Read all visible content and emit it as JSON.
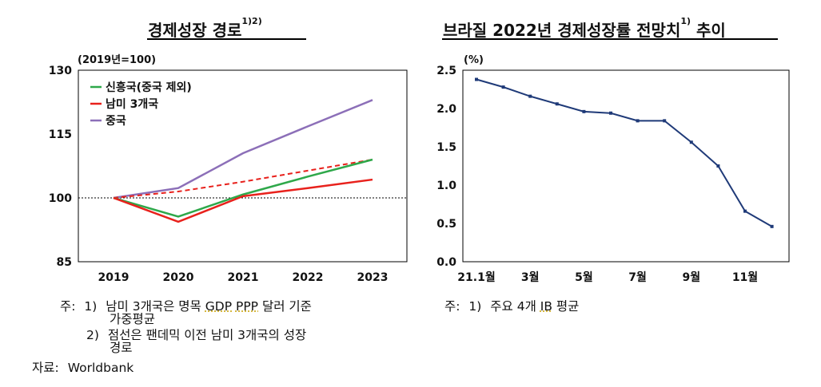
{
  "left": {
    "title": "경제성장 경로",
    "title_sup": "1)2)",
    "notes": {
      "prefix": "주:",
      "n1_num": "1)",
      "n1_a": "남미 3개국은 명목 ",
      "n1_gdp": "GDP",
      "n1_sp": " ",
      "n1_ppp": "PPP",
      "n1_b": " 달러 기준",
      "n1_line2": "가중평균",
      "n2_num": "2)",
      "n2_a": "점선은 팬데믹 이전 남미 3개국의 성장",
      "n2_line2": "경로"
    },
    "source_label": "자료:",
    "source_value": "Worldbank"
  },
  "right": {
    "title": "브라질 2022년 경제성장률 전망치",
    "title_sup": "1)",
    "title_tail": " 추이",
    "notes": {
      "prefix": "주:",
      "n1_num": "1)",
      "n1_a": "주요 4개 ",
      "n1_ib": "IB",
      "n1_b": " 평균"
    }
  },
  "colors": {
    "emerging": "#2ea84a",
    "latam": "#e8211c",
    "china": "#8c6fb8",
    "brazil": "#1f3a78",
    "baseline": "#000000"
  },
  "chart_data": [
    {
      "type": "line",
      "unit_label": "(2019년=100)",
      "x": [
        "2019",
        "2020",
        "2021",
        "2022",
        "2023"
      ],
      "ylim": [
        85,
        130
      ],
      "yticks": [
        85,
        100,
        115,
        130
      ],
      "series": [
        {
          "name": "신흥국(중국 제외)",
          "style": "solid",
          "color": "#2ea84a",
          "values": [
            100,
            95.6,
            100.8,
            105.0,
            109.0
          ]
        },
        {
          "name": "남미 3개국",
          "style": "solid",
          "color": "#e8211c",
          "values": [
            100,
            94.4,
            100.4,
            102.3,
            104.3
          ]
        },
        {
          "name": "중국",
          "style": "solid",
          "color": "#8c6fb8",
          "values": [
            100,
            102.3,
            110.5,
            116.8,
            123.0
          ]
        },
        {
          "name": "",
          "style": "dashed",
          "color": "#e8211c",
          "values": [
            100,
            101.5,
            103.8,
            106.4,
            109.0
          ]
        }
      ],
      "baseline": 100,
      "legend_position": "top-left"
    },
    {
      "type": "line",
      "unit_label": "(%)",
      "ylim": [
        0.0,
        2.5
      ],
      "yticks": [
        "0.0",
        "0.5",
        "1.0",
        "1.5",
        "2.0",
        "2.5"
      ],
      "xtick_labels": [
        "21.1월",
        "3월",
        "5월",
        "7월",
        "9월",
        "11월"
      ],
      "xtick_index": [
        0,
        2,
        4,
        6,
        8,
        10
      ],
      "x": [
        "21.1월",
        "2월",
        "3월",
        "4월",
        "5월",
        "6월",
        "7월",
        "8월",
        "9월",
        "10월",
        "11월",
        "12월"
      ],
      "series": [
        {
          "name": "",
          "color": "#1f3a78",
          "values": [
            2.38,
            2.28,
            2.16,
            2.06,
            1.96,
            1.94,
            1.84,
            1.84,
            1.56,
            1.25,
            0.66,
            0.46
          ]
        }
      ]
    }
  ]
}
